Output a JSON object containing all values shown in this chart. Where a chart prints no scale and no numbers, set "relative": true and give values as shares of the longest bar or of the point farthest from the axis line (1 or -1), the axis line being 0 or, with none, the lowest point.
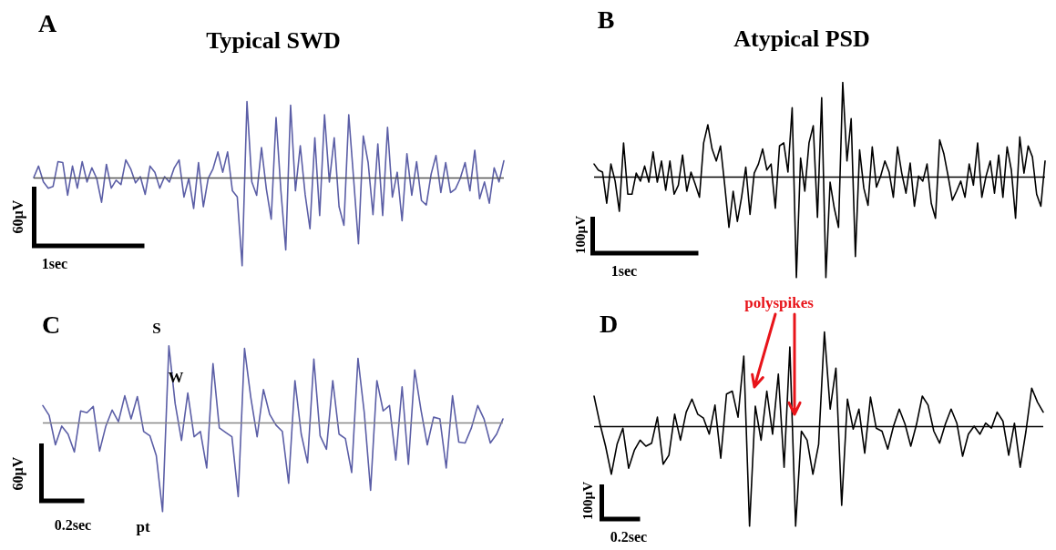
{
  "chart_data": [
    {
      "type": "line",
      "title": "Typical SWD",
      "annotations": [
        "A",
        "60µV",
        "1sec"
      ],
      "relative": true,
      "color": "#5b5ea6",
      "line_style": "solid",
      "ref_lines": [
        {
          "axis": "y",
          "value": 0,
          "color": "#555555"
        }
      ],
      "categories": [
        null,
        null,
        null,
        null,
        null,
        null,
        null,
        null,
        null,
        null,
        null,
        null,
        null,
        null,
        null,
        null,
        null,
        null,
        null,
        null,
        null,
        null,
        null,
        null,
        null,
        null,
        null,
        null,
        null,
        null,
        null,
        null,
        null,
        null,
        null,
        null,
        null,
        null,
        null,
        null,
        null,
        null,
        null,
        null,
        null,
        null,
        null,
        null,
        null,
        null,
        null,
        null,
        null,
        null,
        null,
        null,
        null,
        null,
        null,
        null,
        null,
        null,
        null,
        null,
        null,
        null,
        null,
        null,
        null,
        null,
        null,
        null,
        null,
        null,
        null,
        null,
        null,
        null,
        null,
        null,
        null,
        null,
        null,
        null,
        null,
        null,
        null,
        null,
        null,
        null,
        null,
        null,
        null,
        null,
        null,
        null,
        null,
        null
      ],
      "values": [
        0,
        0.13,
        -0.05,
        -0.12,
        -0.1,
        0.18,
        0.17,
        -0.2,
        0.13,
        -0.12,
        0.18,
        -0.05,
        0.11,
        -0.01,
        -0.28,
        0.15,
        -0.12,
        -0.03,
        -0.08,
        0.2,
        0.1,
        -0.06,
        0.01,
        -0.19,
        0.13,
        0.06,
        -0.12,
        0.01,
        -0.05,
        0.11,
        0.2,
        -0.22,
        -0.01,
        -0.35,
        0.17,
        -0.33,
        -0.01,
        0.1,
        0.29,
        0.06,
        0.29,
        -0.15,
        -0.22,
        -1,
        0.86,
        -0.05,
        -0.2,
        0.34,
        -0.13,
        -0.47,
        0.68,
        -0.15,
        -0.82,
        0.82,
        -0.15,
        0.36,
        -0.19,
        -0.58,
        0.45,
        -0.43,
        0.71,
        -0.05,
        0.45,
        -0.33,
        -0.54,
        0.71,
        -0.01,
        -0.75,
        0.47,
        0.17,
        -0.42,
        0.38,
        -0.43,
        0.57,
        -0.22,
        0.06,
        -0.49,
        0.27,
        -0.2,
        0.18,
        -0.26,
        -0.31,
        0.04,
        0.25,
        -0.17,
        0.17,
        -0.17,
        -0.13,
        -0.01,
        0.17,
        -0.15,
        0.31,
        -0.24,
        -0.05,
        -0.29,
        0.11,
        -0.05,
        0.19
      ]
    },
    {
      "type": "line",
      "title": "Atypical PSD",
      "annotations": [
        "B",
        "100µV",
        "1sec"
      ],
      "relative": true,
      "color": "#000000",
      "line_style": "solid",
      "ref_lines": [
        {
          "axis": "y",
          "value": 0,
          "color": "#000000"
        }
      ],
      "categories": [
        null,
        null,
        null,
        null,
        null,
        null,
        null,
        null,
        null,
        null,
        null,
        null,
        null,
        null,
        null,
        null,
        null,
        null,
        null,
        null,
        null,
        null,
        null,
        null,
        null,
        null,
        null,
        null,
        null,
        null,
        null,
        null,
        null,
        null,
        null,
        null,
        null,
        null,
        null,
        null,
        null,
        null,
        null,
        null,
        null,
        null,
        null,
        null,
        null,
        null,
        null,
        null,
        null,
        null,
        null,
        null,
        null,
        null,
        null,
        null,
        null,
        null,
        null,
        null,
        null,
        null,
        null,
        null,
        null,
        null,
        null,
        null,
        null,
        null,
        null,
        null,
        null,
        null,
        null,
        null,
        null,
        null,
        null,
        null,
        null,
        null,
        null,
        null,
        null,
        null,
        null,
        null,
        null,
        null,
        null,
        null,
        null,
        null,
        null,
        null,
        null,
        null,
        null,
        null,
        null,
        null,
        null,
        null
      ],
      "values": [
        0.13,
        0.07,
        0.05,
        -0.26,
        0.13,
        -0.04,
        -0.34,
        0.34,
        -0.17,
        -0.17,
        0.04,
        -0.04,
        0.11,
        -0.05,
        0.25,
        -0.05,
        0.16,
        -0.13,
        0.16,
        -0.17,
        -0.08,
        0.22,
        -0.14,
        0.05,
        -0.07,
        -0.2,
        0.34,
        0.52,
        0.28,
        0.16,
        0.31,
        -0.08,
        -0.5,
        -0.14,
        -0.44,
        -0.2,
        0.1,
        -0.37,
        0.04,
        0.13,
        0.28,
        0.07,
        0.13,
        -0.31,
        0.31,
        0.34,
        0.05,
        0.69,
        -1,
        0.19,
        -0.14,
        0.34,
        0.51,
        -0.4,
        0.79,
        -1,
        -0.05,
        -0.31,
        -0.5,
        0.94,
        0.16,
        0.58,
        -0.79,
        0.27,
        -0.11,
        -0.28,
        0.3,
        -0.1,
        0.01,
        0.16,
        0.05,
        -0.2,
        0.3,
        0.04,
        -0.16,
        0.14,
        -0.29,
        0.01,
        -0.04,
        0.13,
        -0.26,
        -0.41,
        0.37,
        0.23,
        0.01,
        -0.23,
        -0.14,
        -0.04,
        -0.2,
        0.13,
        -0.08,
        0.34,
        -0.2,
        0.01,
        0.16,
        -0.16,
        0.22,
        -0.2,
        0.3,
        0.07,
        -0.41,
        0.4,
        0.04,
        0.31,
        0.2,
        -0.17,
        -0.29,
        0.16
      ]
    },
    {
      "type": "line",
      "annotations": [
        "C",
        "S",
        "W",
        "pt",
        "60µV",
        "0.2sec"
      ],
      "relative": true,
      "color": "#5b5ea6",
      "line_style": "solid",
      "ref_lines": [
        {
          "axis": "y",
          "value": 0,
          "color": "#888888"
        }
      ],
      "categories": [
        null,
        null,
        null,
        null,
        null,
        null,
        null,
        null,
        null,
        null,
        null,
        null,
        null,
        null,
        null,
        null,
        null,
        null,
        null,
        null,
        null,
        null,
        null,
        null,
        null,
        null,
        null,
        null,
        null,
        null,
        null,
        null,
        null,
        null,
        null,
        null,
        null,
        null,
        null,
        null,
        null,
        null,
        null,
        null,
        null,
        null,
        null,
        null,
        null,
        null,
        null,
        null,
        null,
        null,
        null,
        null,
        null,
        null,
        null,
        null,
        null,
        null,
        null,
        null,
        null,
        null,
        null,
        null,
        null,
        null,
        null,
        null,
        null,
        null
      ],
      "values": [
        0.19,
        0.08,
        -0.25,
        -0.04,
        -0.13,
        -0.33,
        0.13,
        0.11,
        0.18,
        -0.32,
        -0.04,
        0.14,
        0.01,
        0.3,
        0.04,
        0.29,
        -0.1,
        -0.15,
        -0.37,
        -1,
        0.86,
        0.21,
        -0.2,
        0.33,
        -0.16,
        -0.1,
        -0.51,
        0.66,
        -0.06,
        -0.11,
        -0.16,
        -0.83,
        0.83,
        0.28,
        -0.16,
        0.37,
        0.09,
        -0.03,
        -0.1,
        -0.68,
        0.47,
        -0.13,
        -0.45,
        0.71,
        -0.15,
        -0.3,
        0.47,
        -0.13,
        -0.18,
        -0.56,
        0.72,
        0.11,
        -0.76,
        0.47,
        0.13,
        0.19,
        -0.42,
        0.4,
        -0.47,
        0.59,
        0.14,
        -0.25,
        0.06,
        0.04,
        -0.51,
        0.3,
        -0.22,
        -0.23,
        -0.06,
        0.19,
        0.04,
        -0.23,
        -0.13,
        0.04
      ]
    },
    {
      "type": "line",
      "annotations": [
        "D",
        "polyspikes",
        "100µV",
        "0.2sec"
      ],
      "relative": true,
      "color": "#000000",
      "line_style": "solid",
      "ref_lines": [
        {
          "axis": "y",
          "value": 0,
          "color": "#000000"
        }
      ],
      "categories": [
        null,
        null,
        null,
        null,
        null,
        null,
        null,
        null,
        null,
        null,
        null,
        null,
        null,
        null,
        null,
        null,
        null,
        null,
        null,
        null,
        null,
        null,
        null,
        null,
        null,
        null,
        null,
        null,
        null,
        null,
        null,
        null,
        null,
        null,
        null,
        null,
        null,
        null,
        null,
        null,
        null,
        null,
        null,
        null,
        null,
        null,
        null,
        null,
        null,
        null,
        null,
        null,
        null,
        null,
        null,
        null,
        null,
        null,
        null,
        null,
        null,
        null,
        null,
        null,
        null,
        null,
        null,
        null,
        null,
        null,
        null,
        null,
        null,
        null,
        null,
        null,
        null,
        null,
        null
      ],
      "values": [
        0.3,
        0.03,
        -0.2,
        -0.48,
        -0.18,
        -0.02,
        -0.42,
        -0.24,
        -0.14,
        -0.2,
        -0.17,
        0.09,
        -0.38,
        -0.29,
        0.12,
        -0.14,
        0.14,
        0.27,
        0.12,
        0.08,
        -0.08,
        0.21,
        -0.32,
        0.32,
        0.35,
        0.09,
        0.7,
        -1,
        0.2,
        -0.14,
        0.35,
        -0.08,
        0.52,
        -0.41,
        0.79,
        -1,
        -0.05,
        -0.14,
        -0.48,
        -0.18,
        0.94,
        0.17,
        0.58,
        -0.79,
        0.27,
        -0.03,
        0.17,
        -0.27,
        0.29,
        -0.02,
        -0.05,
        -0.23,
        0,
        0.17,
        0.02,
        -0.2,
        0.02,
        0.3,
        0.21,
        -0.05,
        -0.17,
        0.02,
        0.17,
        0.03,
        -0.3,
        -0.08,
        0,
        -0.08,
        0.03,
        -0.02,
        0.14,
        0.05,
        -0.29,
        0.03,
        -0.41,
        -0.05,
        0.38,
        0.24,
        0.14
      ]
    }
  ]
}
